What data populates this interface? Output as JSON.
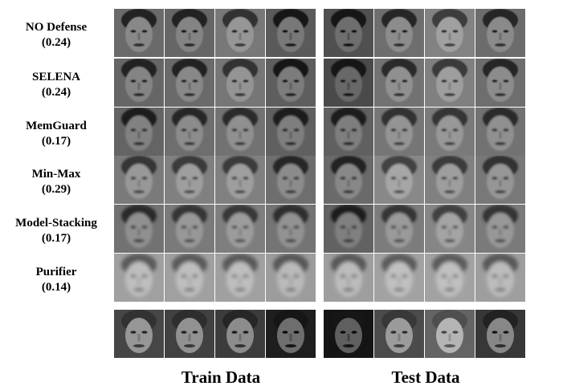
{
  "rows": [
    {
      "method": "NO Defense",
      "score": "(0.24)",
      "blur": 0.6,
      "tone": [
        96,
        92,
        110,
        80,
        70,
        100,
        120,
        98
      ]
    },
    {
      "method": "SELENA",
      "score": "(0.24)",
      "blur": 0.8,
      "tone": [
        92,
        96,
        108,
        84,
        64,
        104,
        118,
        100
      ]
    },
    {
      "method": "MemGuard",
      "score": "(0.17)",
      "blur": 1.0,
      "tone": [
        90,
        100,
        104,
        86,
        86,
        108,
        112,
        104
      ]
    },
    {
      "method": "Min-Max",
      "score": "(0.29)",
      "blur": 1.2,
      "tone": [
        112,
        118,
        118,
        100,
        96,
        126,
        118,
        110
      ]
    },
    {
      "method": "Model-Stacking",
      "score": "(0.17)",
      "blur": 1.6,
      "tone": [
        104,
        112,
        116,
        106,
        88,
        114,
        124,
        112
      ]
    },
    {
      "method": "Purifier",
      "score": "(0.14)",
      "blur": 2.4,
      "tone": [
        150,
        150,
        150,
        146,
        148,
        152,
        152,
        148
      ]
    }
  ],
  "ground_truth_tone": [
    110,
    105,
    100,
    70,
    55,
    115,
    140,
    95
  ],
  "train_title": "Train Data",
  "test_title": "Test Data"
}
